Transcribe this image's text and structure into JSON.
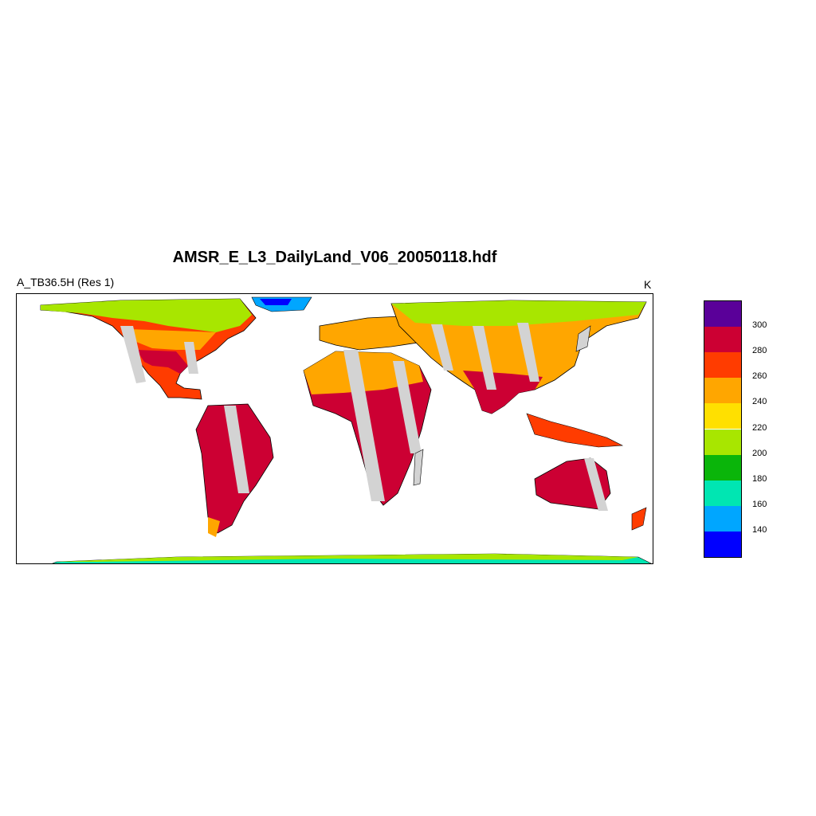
{
  "title": "AMSR_E_L3_DailyLand_V06_20050118.hdf",
  "variable_label": "A_TB36.5H (Res 1)",
  "units_label": "K",
  "map": {
    "projection": "cylindrical-equidistant",
    "missing_swath_color": "#d3d3d3",
    "land_outline_color": "#000000",
    "ocean_color": "#ffffff"
  },
  "colorbar": {
    "orientation": "vertical",
    "levels": [
      {
        "color": "#0000ff",
        "label": ""
      },
      {
        "color": "#00a6ff",
        "label": "140"
      },
      {
        "color": "#00e6b2",
        "label": "160"
      },
      {
        "color": "#0ab50a",
        "label": "180"
      },
      {
        "color": "#a8e600",
        "label": "200"
      },
      {
        "color": "#ffe000",
        "label": "220"
      },
      {
        "color": "#ffa600",
        "label": "240"
      },
      {
        "color": "#ff3c00",
        "label": "260"
      },
      {
        "color": "#cc0033",
        "label": "280"
      },
      {
        "color": "#5a0099",
        "label": "300"
      }
    ]
  }
}
